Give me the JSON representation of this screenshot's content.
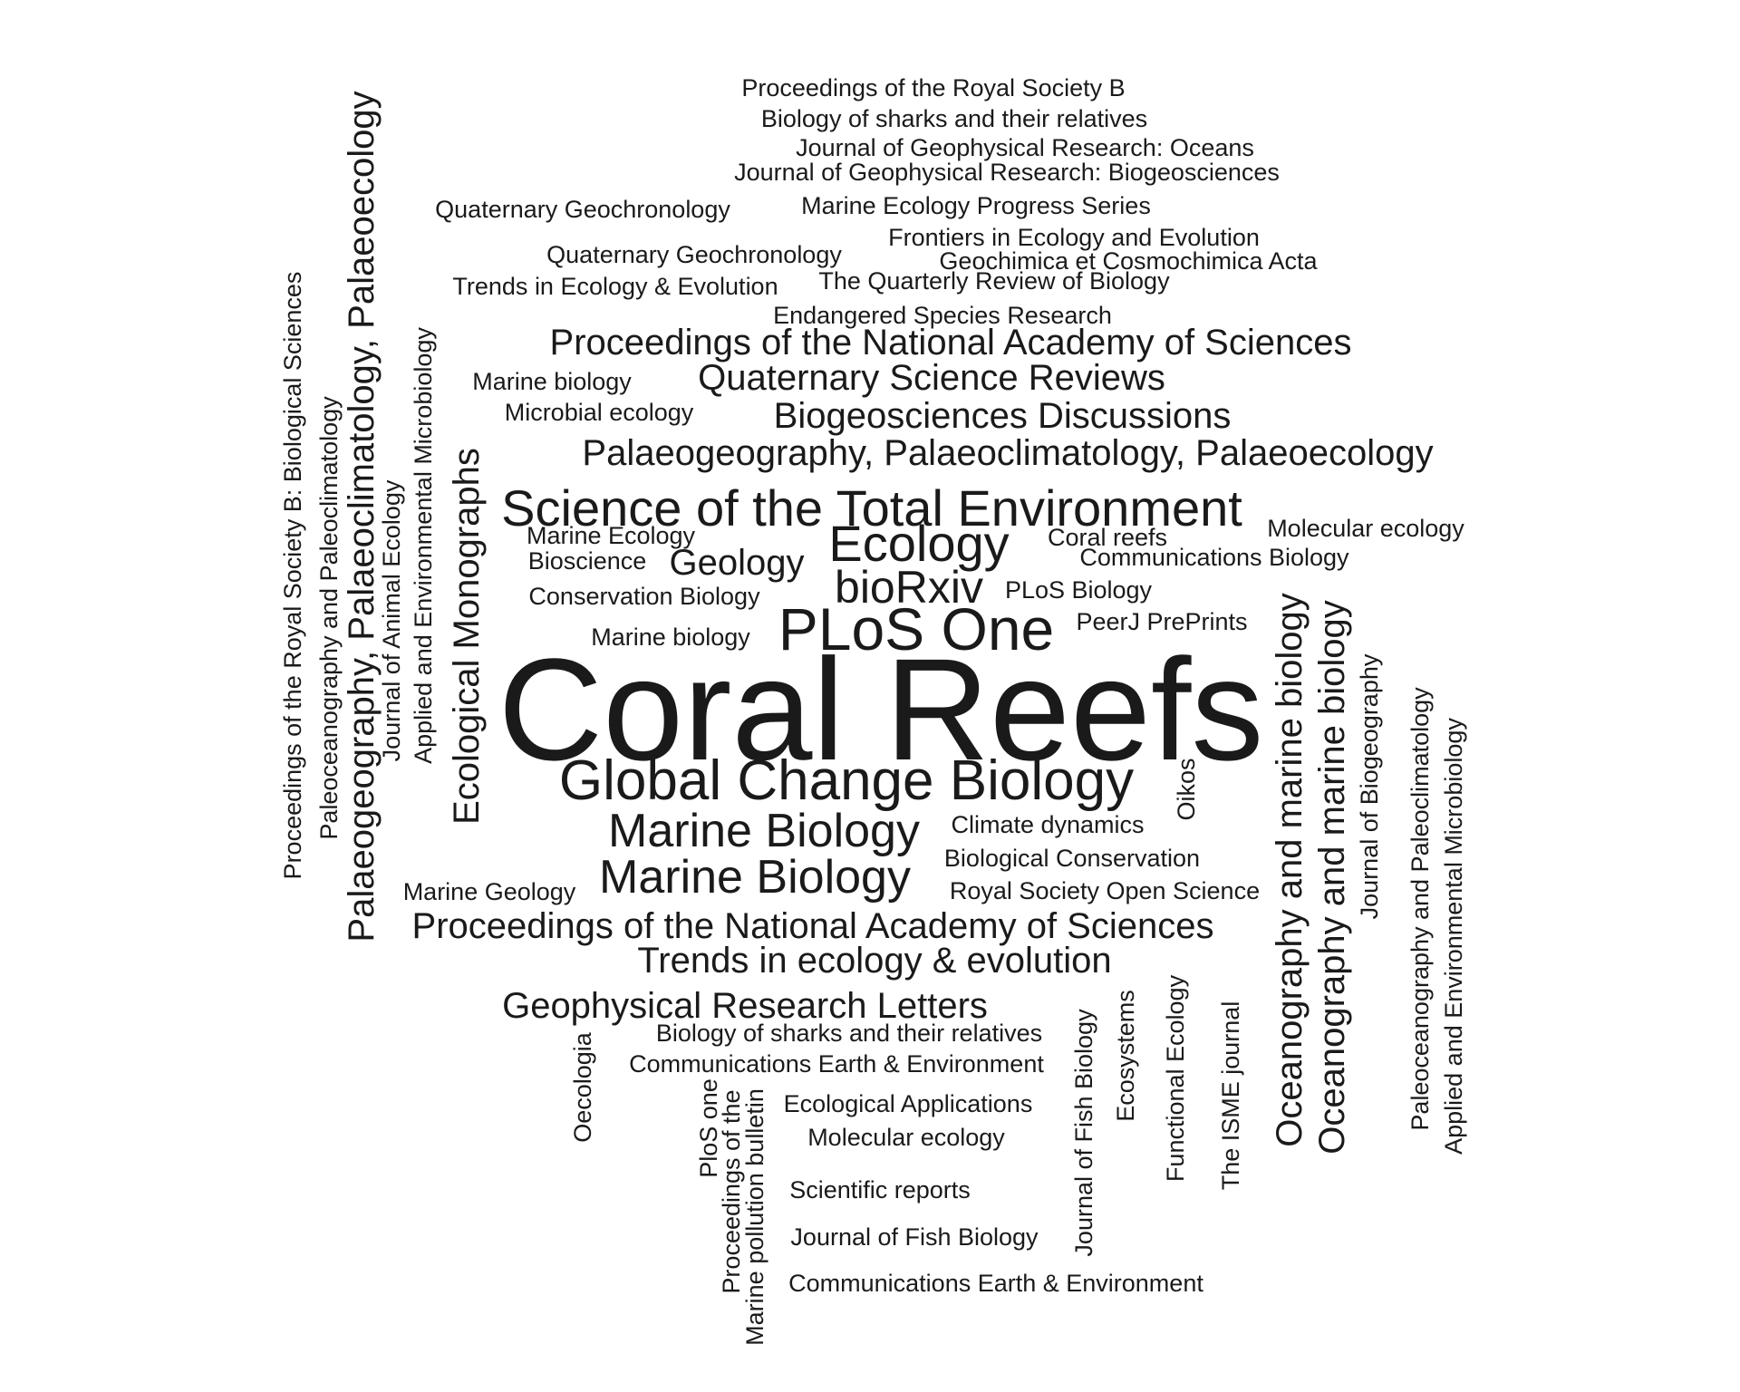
{
  "words": [
    {
      "text": "Proceedings of the Royal Society B",
      "rotated": false
    },
    {
      "text": "Biology of sharks and their relatives",
      "rotated": false
    },
    {
      "text": "Journal of Geophysical Research: Oceans",
      "rotated": false
    },
    {
      "text": "Journal of Geophysical Research: Biogeosciences",
      "rotated": false
    },
    {
      "text": "Quaternary Geochronology",
      "rotated": false
    },
    {
      "text": "Marine Ecology Progress Series",
      "rotated": false
    },
    {
      "text": "Frontiers in Ecology and Evolution",
      "rotated": false
    },
    {
      "text": "Quaternary Geochronology",
      "rotated": false
    },
    {
      "text": "Geochimica et Cosmochimica Acta",
      "rotated": false
    },
    {
      "text": "Trends in Ecology & Evolution",
      "rotated": false
    },
    {
      "text": "The Quarterly Review of Biology",
      "rotated": false
    },
    {
      "text": "Endangered Species Research",
      "rotated": false
    },
    {
      "text": "Proceedings of the National Academy of Sciences",
      "rotated": false
    },
    {
      "text": "Marine biology",
      "rotated": false
    },
    {
      "text": "Quaternary Science Reviews",
      "rotated": false
    },
    {
      "text": "Microbial ecology",
      "rotated": false
    },
    {
      "text": "Biogeosciences Discussions",
      "rotated": false
    },
    {
      "text": "Palaeogeography, Palaeoclimatology, Palaeoecology",
      "rotated": false
    },
    {
      "text": "Science of the Total Environment",
      "rotated": false
    },
    {
      "text": "Marine Ecology",
      "rotated": false
    },
    {
      "text": "Coral reefs",
      "rotated": false
    },
    {
      "text": "Molecular ecology",
      "rotated": false
    },
    {
      "text": "Ecology",
      "rotated": false
    },
    {
      "text": "Bioscience",
      "rotated": false
    },
    {
      "text": "Geology",
      "rotated": false
    },
    {
      "text": "Communications Biology",
      "rotated": false
    },
    {
      "text": "bioRxiv",
      "rotated": false
    },
    {
      "text": "PLoS Biology",
      "rotated": false
    },
    {
      "text": "Conservation Biology",
      "rotated": false
    },
    {
      "text": "PeerJ PrePrints",
      "rotated": false
    },
    {
      "text": "PLoS One",
      "rotated": false
    },
    {
      "text": "Marine biology",
      "rotated": false
    },
    {
      "text": "Coral Reefs",
      "rotated": false
    },
    {
      "text": "Global Change Biology",
      "rotated": false
    },
    {
      "text": "Marine Biology",
      "rotated": false
    },
    {
      "text": "Climate dynamics",
      "rotated": false
    },
    {
      "text": "Biological Conservation",
      "rotated": false
    },
    {
      "text": "Marine Biology",
      "rotated": false
    },
    {
      "text": "Marine Geology",
      "rotated": false
    },
    {
      "text": "Royal Society Open Science",
      "rotated": false
    },
    {
      "text": "Proceedings of the National Academy of Sciences",
      "rotated": false
    },
    {
      "text": "Trends in ecology & evolution",
      "rotated": false
    },
    {
      "text": "Geophysical Research Letters",
      "rotated": false
    },
    {
      "text": "Biology of sharks and their relatives",
      "rotated": false
    },
    {
      "text": "Communications Earth & Environment",
      "rotated": false
    },
    {
      "text": "Ecological Applications",
      "rotated": false
    },
    {
      "text": "Molecular ecology",
      "rotated": false
    },
    {
      "text": "Scientific reports",
      "rotated": false
    },
    {
      "text": "Journal of Fish Biology",
      "rotated": false
    },
    {
      "text": "Communications Earth & Environment",
      "rotated": false
    },
    {
      "text": "Proceedings of the Royal Society B: Biological Sciences",
      "rotated": true
    },
    {
      "text": "Paleoceanography and Paleoclimatology",
      "rotated": true
    },
    {
      "text": "Palaeogeography, Palaeoclimatology, Palaeoecology",
      "rotated": true
    },
    {
      "text": "Journal of Animal Ecology",
      "rotated": true
    },
    {
      "text": "Applied and Environmental Microbiology",
      "rotated": true
    },
    {
      "text": "Ecological Monographs",
      "rotated": true
    },
    {
      "text": "Oecologia",
      "rotated": true
    },
    {
      "text": "PloS one",
      "rotated": true
    },
    {
      "text": "Proceedings of the",
      "rotated": true
    },
    {
      "text": "Marine pollution bulletin",
      "rotated": true
    },
    {
      "text": "Journal of Fish Biology",
      "rotated": true
    },
    {
      "text": "Ecosystems",
      "rotated": true
    },
    {
      "text": "Functional Ecology",
      "rotated": true
    },
    {
      "text": "Oikos",
      "rotated": true
    },
    {
      "text": "The ISME journal",
      "rotated": true
    },
    {
      "text": "Oceanography and marine biology",
      "rotated": true
    },
    {
      "text": "Oceanography and marine biology",
      "rotated": true
    },
    {
      "text": "Journal of Biogeography",
      "rotated": true
    },
    {
      "text": "Paleoceanography and Paleoclimatology",
      "rotated": true
    },
    {
      "text": "Applied and Environmental Microbiology",
      "rotated": true
    }
  ]
}
